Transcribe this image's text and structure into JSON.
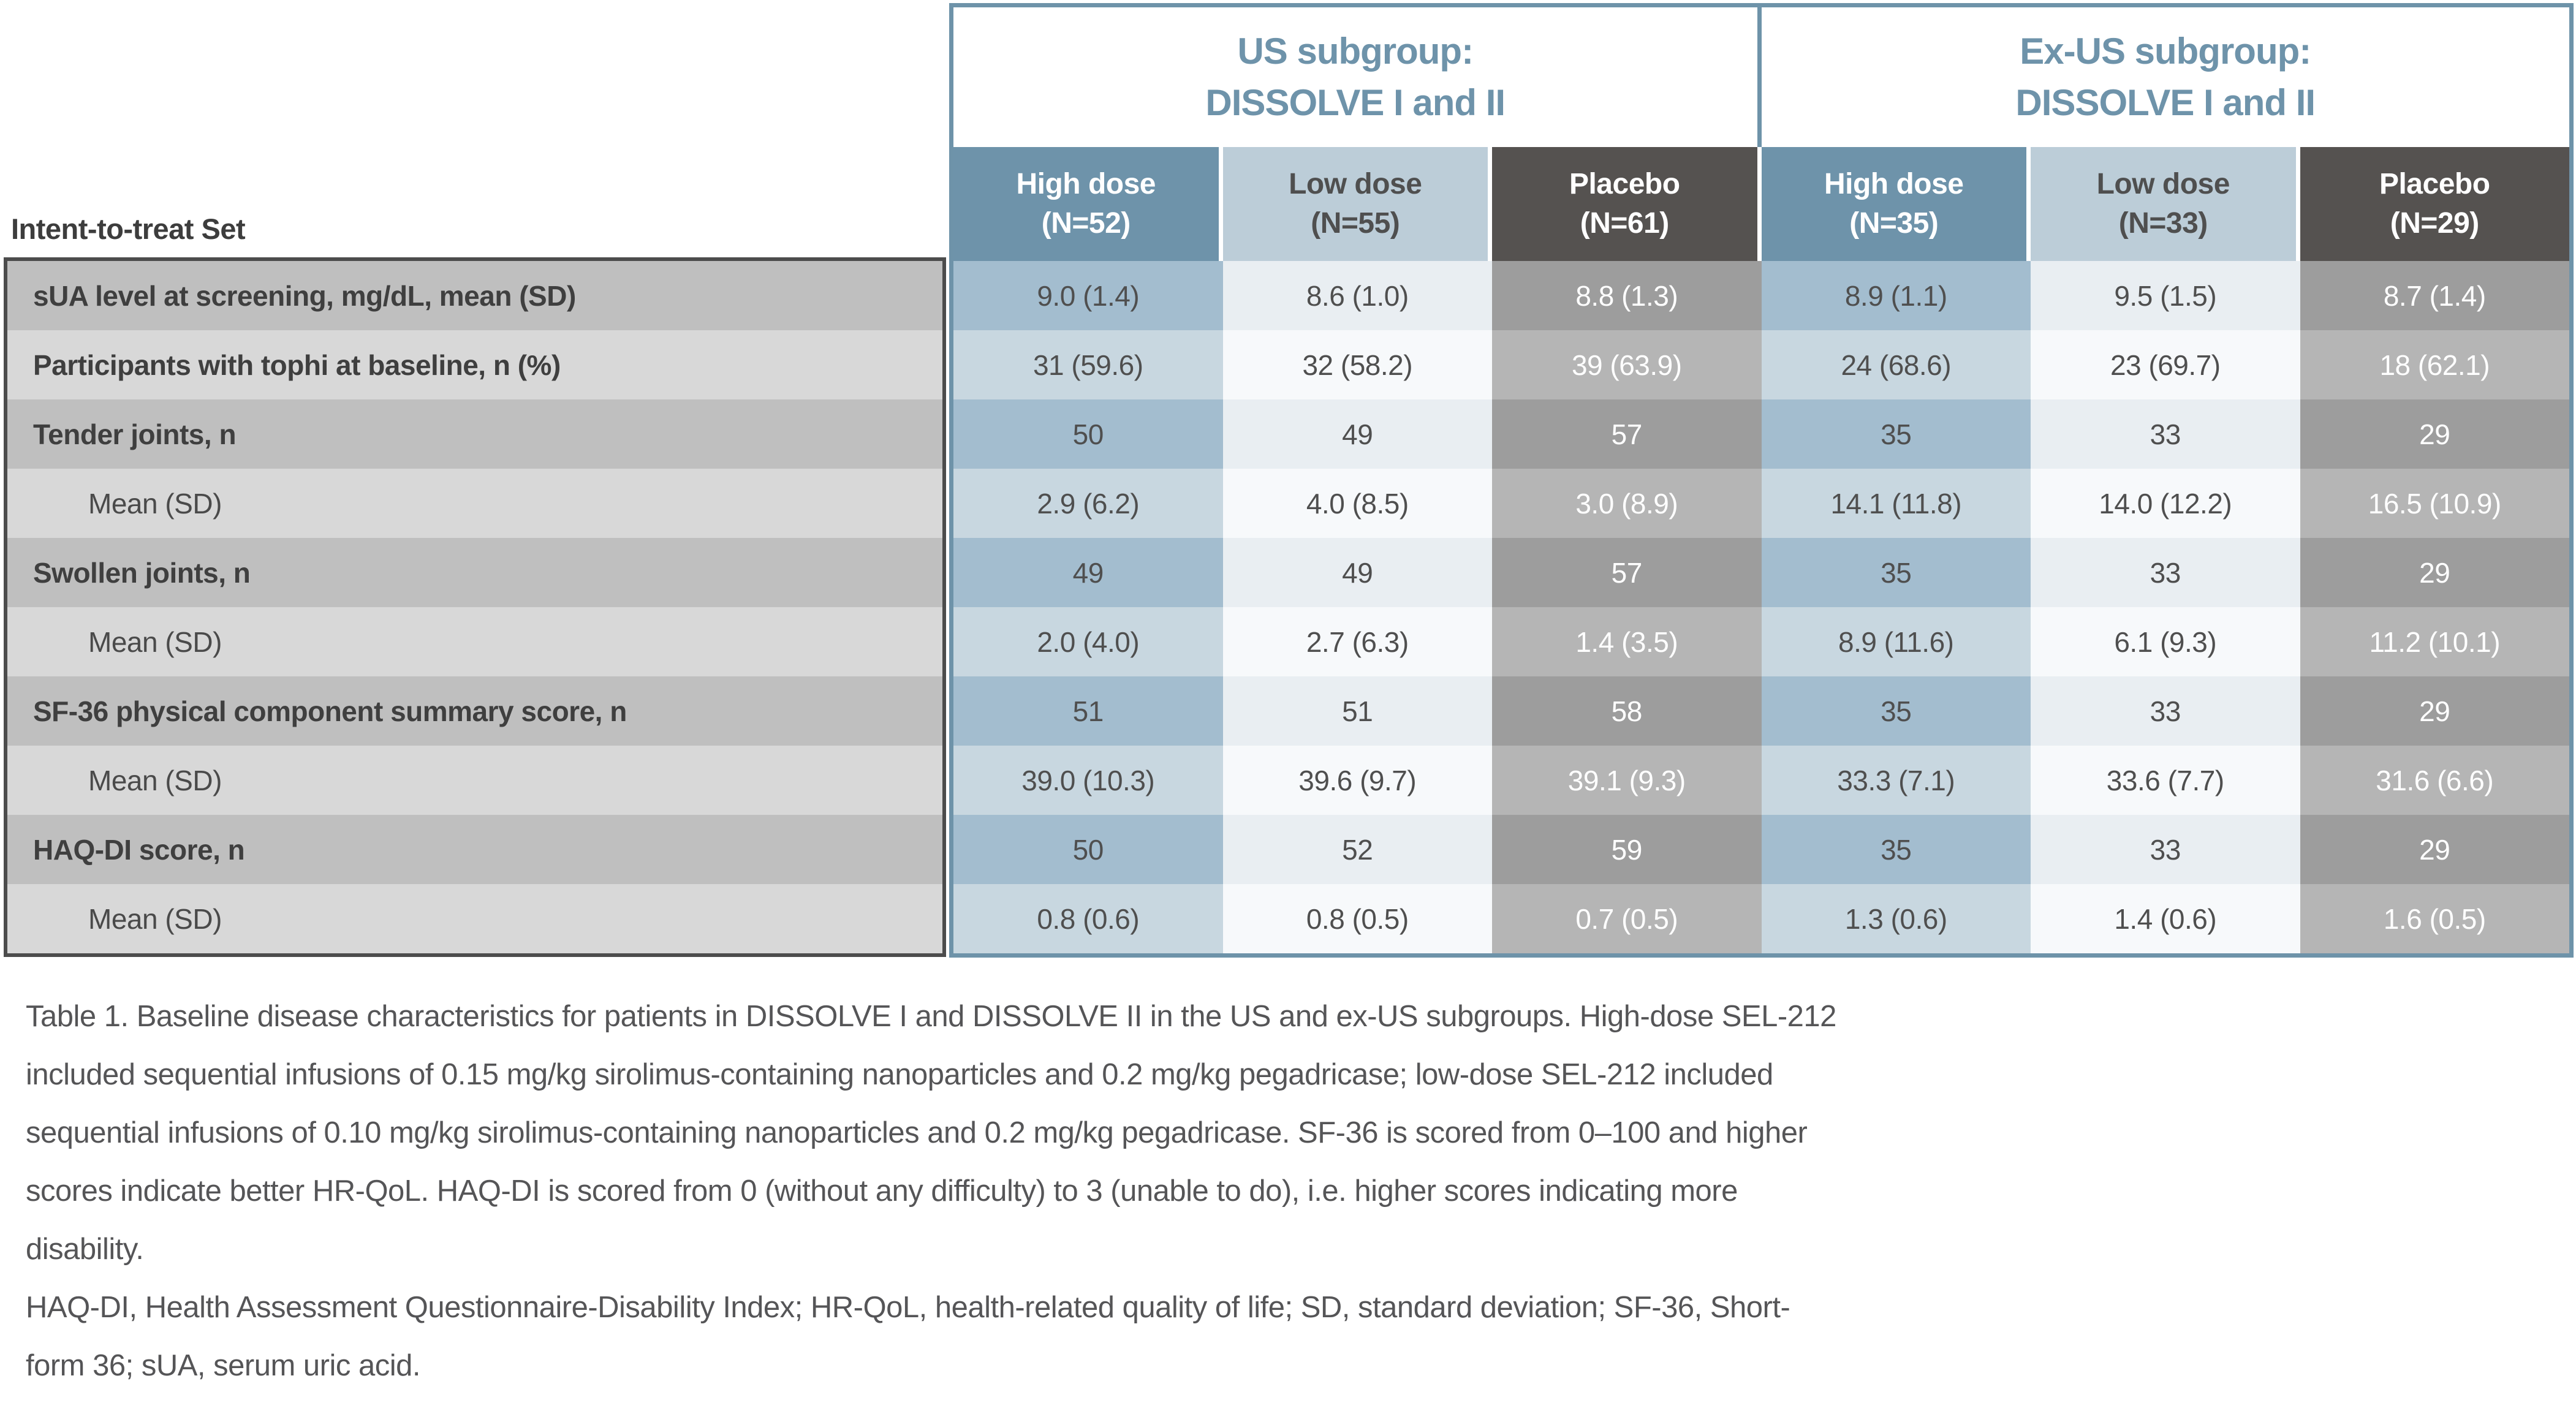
{
  "table": {
    "corner_label": "Intent-to-treat Set",
    "groups": [
      {
        "title_line1": "US subgroup:",
        "title_line2": "DISSOLVE I and II"
      },
      {
        "title_line1": "Ex-US subgroup:",
        "title_line2": "DISSOLVE I and II"
      }
    ],
    "columns": [
      {
        "line1": "High dose",
        "line2": "(N=52)",
        "type": "high"
      },
      {
        "line1": "Low dose",
        "line2": "(N=55)",
        "type": "low"
      },
      {
        "line1": "Placebo",
        "line2": "(N=61)",
        "type": "placebo"
      },
      {
        "line1": "High dose",
        "line2": "(N=35)",
        "type": "high"
      },
      {
        "line1": "Low dose",
        "line2": "(N=33)",
        "type": "low"
      },
      {
        "line1": "Placebo",
        "line2": "(N=29)",
        "type": "placebo"
      }
    ],
    "rows": [
      {
        "label": "sUA level at screening, mg/dL, mean (SD)",
        "indent": false,
        "values": [
          "9.0 (1.4)",
          "8.6 (1.0)",
          "8.8 (1.3)",
          "8.9 (1.1)",
          "9.5 (1.5)",
          "8.7 (1.4)"
        ]
      },
      {
        "label": "Participants with tophi at baseline, n (%)",
        "indent": false,
        "values": [
          "31 (59.6)",
          "32 (58.2)",
          "39 (63.9)",
          "24 (68.6)",
          "23 (69.7)",
          "18 (62.1)"
        ]
      },
      {
        "label": "Tender joints, n",
        "indent": false,
        "values": [
          "50",
          "49",
          "57",
          "35",
          "33",
          "29"
        ]
      },
      {
        "label": "Mean (SD)",
        "indent": true,
        "values": [
          "2.9 (6.2)",
          "4.0 (8.5)",
          "3.0 (8.9)",
          "14.1 (11.8)",
          "14.0 (12.2)",
          "16.5 (10.9)"
        ]
      },
      {
        "label": "Swollen joints, n",
        "indent": false,
        "values": [
          "49",
          "49",
          "57",
          "35",
          "33",
          "29"
        ]
      },
      {
        "label": "Mean (SD)",
        "indent": true,
        "values": [
          "2.0 (4.0)",
          "2.7 (6.3)",
          "1.4 (3.5)",
          "8.9 (11.6)",
          "6.1 (9.3)",
          "11.2 (10.1)"
        ]
      },
      {
        "label": "SF-36 physical component summary score, n",
        "indent": false,
        "values": [
          "51",
          "51",
          "58",
          "35",
          "33",
          "29"
        ]
      },
      {
        "label": "Mean (SD)",
        "indent": true,
        "values": [
          "39.0 (10.3)",
          "39.6 (9.7)",
          "39.1 (9.3)",
          "33.3 (7.1)",
          "33.6 (7.7)",
          "31.6 (6.6)"
        ]
      },
      {
        "label": "HAQ-DI score, n",
        "indent": false,
        "values": [
          "50",
          "52",
          "59",
          "35",
          "33",
          "29"
        ]
      },
      {
        "label": "Mean (SD)",
        "indent": true,
        "values": [
          "0.8 (0.6)",
          "0.8 (0.5)",
          "0.7 (0.5)",
          "1.3 (0.6)",
          "1.4 (0.6)",
          "1.6 (0.5)"
        ]
      }
    ]
  },
  "caption": {
    "lines": [
      "Table 1. Baseline disease characteristics for patients in DISSOLVE I and DISSOLVE II in the US and ex-US subgroups. High-dose SEL-212",
      "included sequential infusions of 0.15 mg/kg sirolimus-containing nanoparticles and 0.2 mg/kg pegadricase; low-dose SEL-212 included",
      "sequential infusions of 0.10 mg/kg sirolimus-containing nanoparticles and 0.2 mg/kg pegadricase. SF-36 is scored from 0–100 and higher",
      "scores indicate better HR-QoL. HAQ-DI is scored from 0 (without any difficulty) to 3 (unable to do), i.e. higher scores indicating more",
      "disability.",
      "HAQ-DI, Health Assessment Questionnaire-Disability Index; HR-QoL, health-related quality of life; SD, standard deviation; SF-36, Short-",
      "form 36; sUA, serum uric acid."
    ]
  },
  "colors": {
    "accent_blue": "#6e93aa",
    "high_dose_row_dark": "#a3bdcf",
    "high_dose_row_light": "#c8d7e0",
    "low_dose_header": "#bccdd8",
    "low_dose_row_dark": "#e9eef2",
    "low_dose_row_light": "#f7f9fb",
    "placebo_header": "#555250",
    "placebo_row_dark": "#9d9d9d",
    "placebo_row_light": "#b5b5b5",
    "label_row_dark": "#bfbfbf",
    "label_row_light": "#d8d8d8",
    "label_border": "#4c4c4c"
  }
}
